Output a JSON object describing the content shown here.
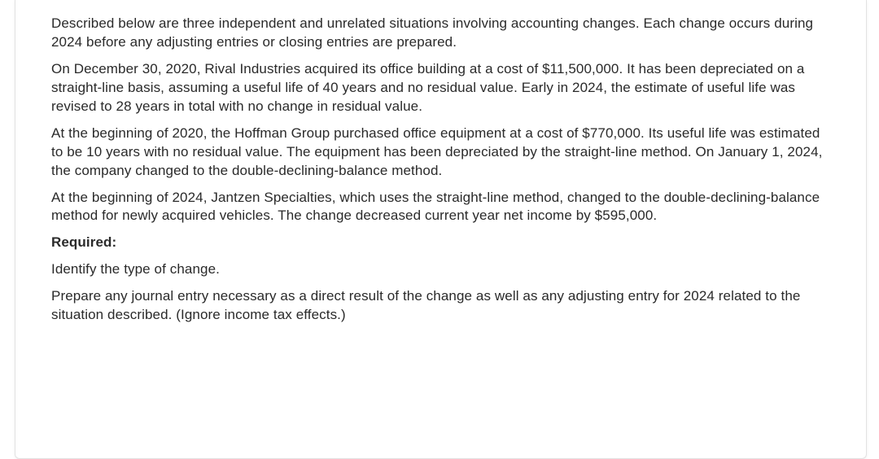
{
  "document": {
    "text_color": "#2a2a2a",
    "background": "#ffffff",
    "card_border": "#e2e2e2",
    "fontsize": 17,
    "line_height": 1.35,
    "paragraphs": [
      {
        "text": "Described below are three independent and unrelated situations involving accounting changes. Each change occurs during 2024 before any adjusting entries or closing entries are prepared.",
        "bold": false
      },
      {
        "text": "On December 30, 2020, Rival Industries acquired its office building at a cost of $11,500,000. It has been depreciated on a straight-line basis, assuming a useful life of 40 years and no residual value. Early in 2024, the estimate of useful life was revised to 28 years in total with no change in residual value.",
        "bold": false
      },
      {
        "text": "At the beginning of 2020, the Hoffman Group purchased office equipment at a cost of $770,000. Its useful life was estimated to be 10 years with no residual value. The equipment has been depreciated by the straight-line method. On January 1, 2024, the company changed to the double-declining-balance method.",
        "bold": false
      },
      {
        "text": "At the beginning of 2024, Jantzen Specialties, which uses the straight-line method, changed to the double-declining-balance method for newly acquired vehicles. The change decreased current year net income by $595,000.",
        "bold": false
      },
      {
        "text": "Required:",
        "bold": true
      },
      {
        "text": "Identify the type of change.",
        "bold": false
      },
      {
        "text": "Prepare any journal entry necessary as a direct result of the change as well as any adjusting entry for 2024 related to the situation described. (Ignore income tax effects.)",
        "bold": false
      }
    ]
  }
}
